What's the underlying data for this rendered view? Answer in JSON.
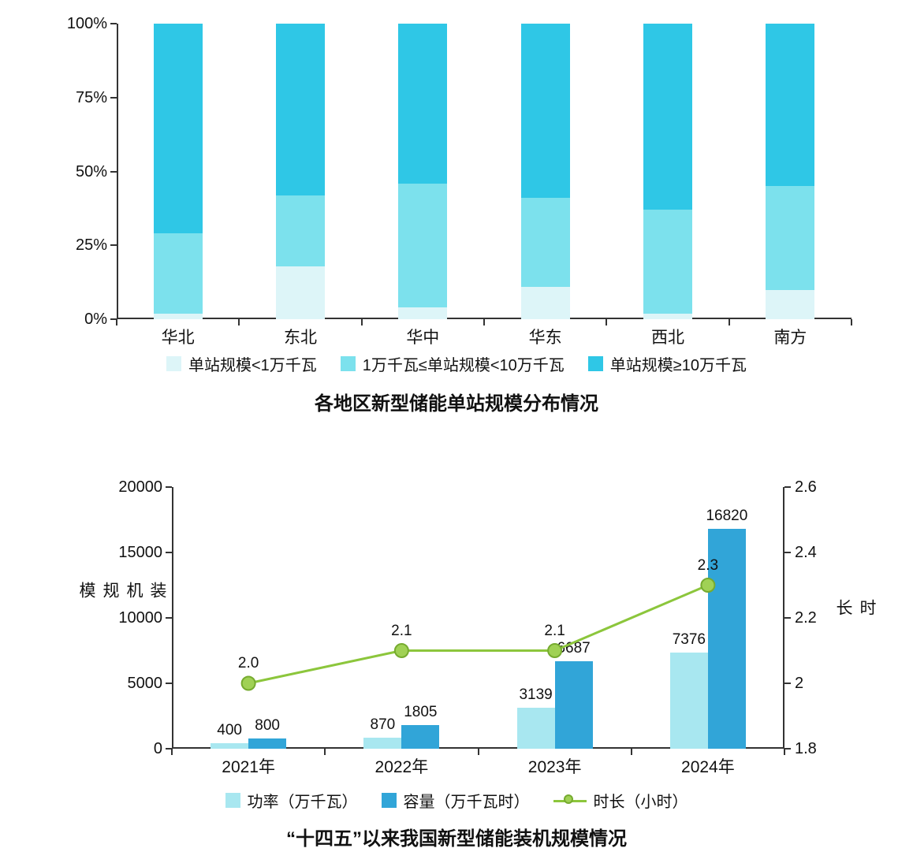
{
  "chart_data": [
    {
      "type": "bar",
      "subtype": "stacked-100-percent",
      "title": "各地区新型储能单站规模分布情况",
      "categories": [
        "华北",
        "东北",
        "华中",
        "华东",
        "西北",
        "南方"
      ],
      "series": [
        {
          "name": "单站规模<1万千瓦",
          "color": "#ddf5f8",
          "values": [
            2,
            18,
            4,
            11,
            2,
            10
          ]
        },
        {
          "name": "1万千瓦≤单站规模<10万千瓦",
          "color": "#7ce1ed",
          "values": [
            27,
            24,
            42,
            30,
            35,
            35
          ]
        },
        {
          "name": "单站规模≥10万千瓦",
          "color": "#2fc7e6",
          "values": [
            71,
            58,
            54,
            59,
            63,
            55
          ]
        }
      ],
      "y_ticks": [
        "100%",
        "75%",
        "50%",
        "25%",
        "0%"
      ],
      "ylim": [
        0,
        100
      ],
      "grid": false,
      "legend_position": "bottom"
    },
    {
      "type": "combo",
      "title": "“十四五”以来我国新型储能装机规模情况",
      "categories": [
        "2021年",
        "2022年",
        "2023年",
        "2024年"
      ],
      "bar_series": [
        {
          "name": "功率（万千瓦）",
          "color": "#a8e7f0",
          "values": [
            400,
            870,
            3139,
            7376
          ],
          "axis": "left"
        },
        {
          "name": "容量（万千瓦时）",
          "color": "#31a5d8",
          "values": [
            800,
            1805,
            6687,
            16820
          ],
          "axis": "left"
        }
      ],
      "line_series": [
        {
          "name": "时长（小时）",
          "color": "#8cc63c",
          "marker_fill": "#a0d155",
          "marker_stroke": "#76ab2f",
          "values": [
            2.0,
            2.1,
            2.1,
            2.3
          ],
          "labels": [
            "2.0",
            "2.1",
            "2.1",
            "2.3"
          ],
          "axis": "right"
        }
      ],
      "left_axis": {
        "label": "装机规模",
        "ticks": [
          "0",
          "5000",
          "10000",
          "15000",
          "20000"
        ],
        "min": 0,
        "max": 20000
      },
      "right_axis": {
        "label": "时长",
        "ticks": [
          "1.8",
          "2",
          "2.2",
          "2.4",
          "2.6"
        ],
        "min": 1.8,
        "max": 2.6
      },
      "grid": false,
      "legend_position": "bottom"
    }
  ]
}
